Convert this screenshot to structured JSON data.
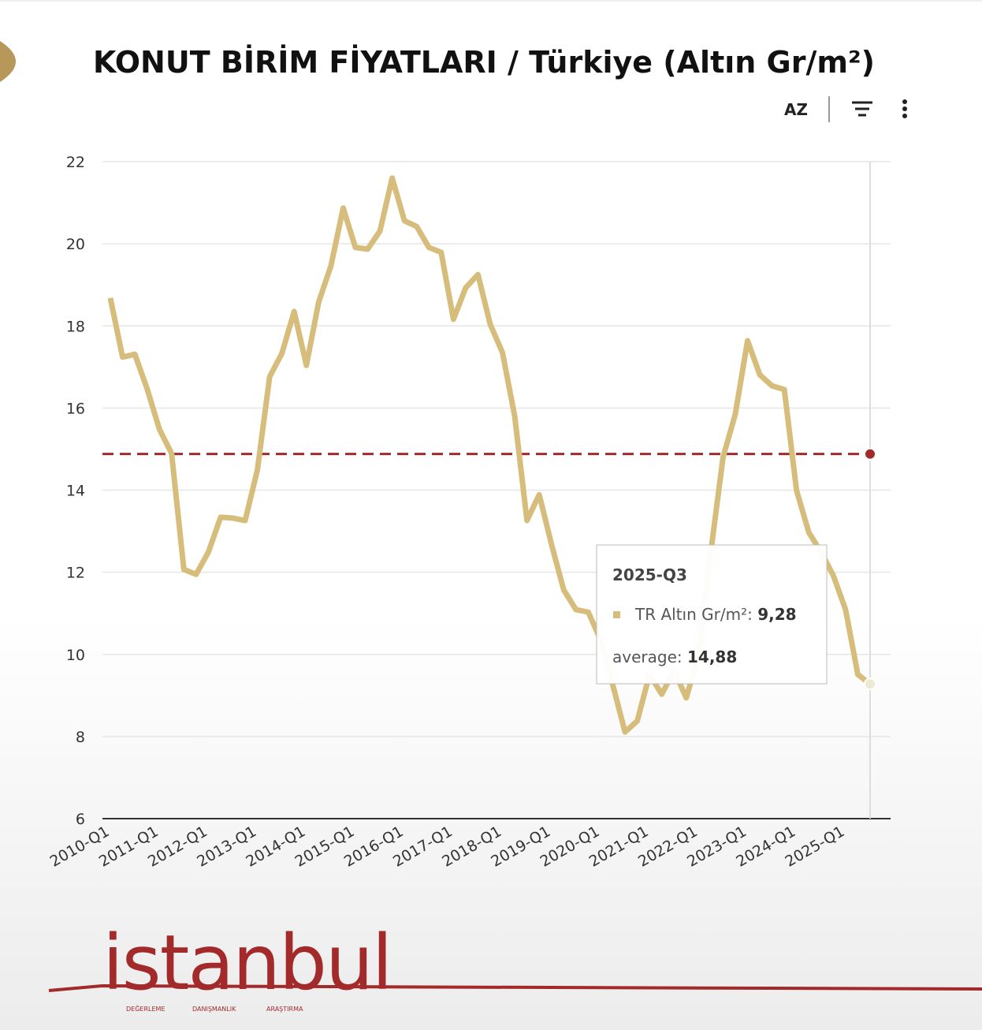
{
  "chart_data": {
    "type": "line",
    "title": "KONUT BİRİM FİYATLARI / Türkiye (Altın Gr/m²)",
    "categories": [
      "2010-Q1",
      null,
      null,
      null,
      "2011-Q1",
      null,
      null,
      null,
      "2012-Q1",
      null,
      null,
      null,
      "2013-Q1",
      null,
      null,
      null,
      "2014-Q1",
      null,
      null,
      null,
      "2015-Q1",
      null,
      null,
      null,
      "2016-Q1",
      null,
      null,
      null,
      "2017-Q1",
      null,
      null,
      null,
      "2018-Q1",
      null,
      null,
      null,
      "2019-Q1",
      null,
      null,
      null,
      "2020-Q1",
      null,
      null,
      null,
      "2021-Q1",
      null,
      null,
      null,
      "2022-Q1",
      null,
      null,
      null,
      "2023-Q1",
      null,
      null,
      null,
      "2024-Q1",
      null,
      null,
      null,
      "2025-Q1",
      null,
      null
    ],
    "series": [
      {
        "name": "TR Altın Gr/m²",
        "color": "#d6bd7c",
        "values": [
          18.68,
          17.24,
          17.31,
          16.47,
          15.49,
          14.89,
          12.07,
          11.95,
          12.49,
          13.34,
          13.32,
          13.26,
          14.49,
          16.76,
          17.33,
          18.35,
          17.04,
          18.58,
          19.46,
          20.87,
          19.91,
          19.87,
          20.31,
          21.6,
          20.56,
          20.42,
          19.91,
          19.79,
          18.16,
          18.93,
          19.25,
          18.04,
          17.35,
          15.8,
          13.26,
          13.89,
          12.68,
          11.57,
          11.09,
          11.03,
          10.36,
          9.26,
          8.11,
          8.38,
          9.51,
          9.03,
          9.61,
          8.94,
          9.99,
          12.49,
          14.8,
          15.85,
          17.64,
          16.81,
          16.54,
          16.45,
          13.99,
          12.97,
          12.49,
          11.92,
          11.09,
          9.51,
          9.28
        ]
      }
    ],
    "average": {
      "name": "average",
      "value": 14.88,
      "color": "#a32a2a"
    },
    "tooltip": {
      "category": "2025-Q3",
      "value_label": "9,28",
      "average_label": "14,88"
    },
    "ylim": [
      6,
      22
    ],
    "yticks": [
      6,
      8,
      10,
      12,
      14,
      16,
      18,
      20,
      22
    ],
    "grid": true
  },
  "brand": {
    "name": "istanbul",
    "tagline": [
      "DEĞERLEME",
      "DANIŞMANLIK",
      "ARAŞTIRMA"
    ]
  }
}
